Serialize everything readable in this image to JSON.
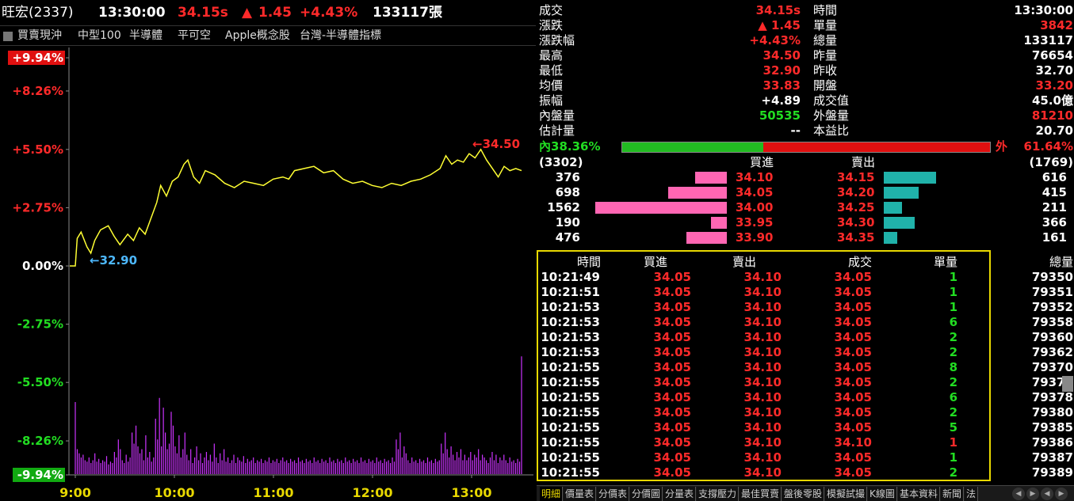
{
  "header": {
    "stock_name": "旺宏(2337)",
    "time": "13:30:00",
    "price": "34.15s",
    "change_arrow": "▲",
    "change": "1.45",
    "change_pct": "+4.43%",
    "volume": "133117張"
  },
  "tags": [
    "買賣現沖",
    "中型100",
    "半導體",
    "平可空",
    "Apple概念股",
    "台灣-半導體指標"
  ],
  "chart_data": {
    "type": "line",
    "title": "",
    "y_labels": [
      "+9.94%",
      "+8.26%",
      "+5.50%",
      "+2.75%",
      "0.00%",
      "-2.75%",
      "-5.50%",
      "-8.26%",
      "-9.94%"
    ],
    "x_labels": [
      "9:00",
      "10:00",
      "11:00",
      "12:00",
      "13:00"
    ],
    "ylim": [
      -9.94,
      9.94
    ],
    "ref_price": 32.7,
    "annotations": {
      "high": "←34.50",
      "low": "←32.90"
    },
    "price_series": [
      {
        "t": 0,
        "p": 0.0
      },
      {
        "t": 1,
        "p": 1.3
      },
      {
        "t": 3,
        "p": 1.6
      },
      {
        "t": 6,
        "p": 0.9
      },
      {
        "t": 8,
        "p": 0.6
      },
      {
        "t": 10,
        "p": 1.2
      },
      {
        "t": 13,
        "p": 1.7
      },
      {
        "t": 17,
        "p": 1.9
      },
      {
        "t": 20,
        "p": 1.4
      },
      {
        "t": 23,
        "p": 1.0
      },
      {
        "t": 27,
        "p": 1.5
      },
      {
        "t": 30,
        "p": 1.2
      },
      {
        "t": 33,
        "p": 1.8
      },
      {
        "t": 36,
        "p": 1.5
      },
      {
        "t": 40,
        "p": 2.5
      },
      {
        "t": 42,
        "p": 3.0
      },
      {
        "t": 44,
        "p": 3.8
      },
      {
        "t": 47,
        "p": 3.3
      },
      {
        "t": 50,
        "p": 4.0
      },
      {
        "t": 53,
        "p": 4.2
      },
      {
        "t": 56,
        "p": 4.8
      },
      {
        "t": 58,
        "p": 5.0
      },
      {
        "t": 61,
        "p": 4.2
      },
      {
        "t": 64,
        "p": 3.9
      },
      {
        "t": 67,
        "p": 4.5
      },
      {
        "t": 72,
        "p": 4.3
      },
      {
        "t": 77,
        "p": 3.9
      },
      {
        "t": 82,
        "p": 3.7
      },
      {
        "t": 87,
        "p": 4.0
      },
      {
        "t": 92,
        "p": 3.9
      },
      {
        "t": 97,
        "p": 3.8
      },
      {
        "t": 102,
        "p": 4.1
      },
      {
        "t": 107,
        "p": 4.2
      },
      {
        "t": 110,
        "p": 4.1
      },
      {
        "t": 113,
        "p": 4.5
      },
      {
        "t": 118,
        "p": 4.6
      },
      {
        "t": 123,
        "p": 4.7
      },
      {
        "t": 128,
        "p": 4.4
      },
      {
        "t": 133,
        "p": 4.5
      },
      {
        "t": 138,
        "p": 4.1
      },
      {
        "t": 143,
        "p": 3.9
      },
      {
        "t": 148,
        "p": 4.0
      },
      {
        "t": 153,
        "p": 3.8
      },
      {
        "t": 158,
        "p": 3.7
      },
      {
        "t": 163,
        "p": 3.9
      },
      {
        "t": 168,
        "p": 3.8
      },
      {
        "t": 173,
        "p": 4.0
      },
      {
        "t": 178,
        "p": 4.1
      },
      {
        "t": 183,
        "p": 4.3
      },
      {
        "t": 188,
        "p": 4.6
      },
      {
        "t": 191,
        "p": 5.2
      },
      {
        "t": 194,
        "p": 4.8
      },
      {
        "t": 197,
        "p": 5.0
      },
      {
        "t": 200,
        "p": 4.9
      },
      {
        "t": 203,
        "p": 5.3
      },
      {
        "t": 206,
        "p": 5.1
      },
      {
        "t": 209,
        "p": 5.5
      },
      {
        "t": 212,
        "p": 5.0
      },
      {
        "t": 215,
        "p": 4.6
      },
      {
        "t": 218,
        "p": 4.2
      },
      {
        "t": 221,
        "p": 4.7
      },
      {
        "t": 224,
        "p": 4.5
      },
      {
        "t": 227,
        "p": 4.6
      },
      {
        "t": 230,
        "p": 4.5
      }
    ],
    "volume_series": [
      52,
      18,
      15,
      12,
      14,
      10,
      9,
      12,
      8,
      10,
      15,
      9,
      11,
      8,
      10,
      9,
      13,
      7,
      9,
      8,
      16,
      12,
      25,
      18,
      10,
      8,
      14,
      9,
      12,
      30,
      22,
      35,
      20,
      15,
      18,
      10,
      28,
      12,
      16,
      9,
      12,
      40,
      25,
      55,
      20,
      48,
      30,
      18,
      22,
      45,
      35,
      20,
      15,
      28,
      12,
      18,
      30,
      14,
      10,
      18,
      8,
      12,
      20,
      10,
      15,
      8,
      12,
      16,
      10,
      14,
      9,
      22,
      12,
      8,
      15,
      10,
      18,
      9,
      12,
      8,
      10,
      14,
      8,
      12,
      10,
      9,
      13,
      8,
      11,
      9,
      10,
      12,
      8,
      10,
      9,
      11,
      8,
      10,
      9,
      12,
      8,
      10,
      9,
      11,
      8,
      10,
      12,
      9,
      10,
      8,
      11,
      9,
      10,
      8,
      12,
      9,
      10,
      8,
      11,
      9,
      10,
      8,
      12,
      9,
      10,
      8,
      11,
      9,
      10,
      8,
      12,
      9,
      10,
      8,
      11,
      9,
      10,
      8,
      12,
      9,
      10,
      8,
      11,
      9,
      10,
      8,
      12,
      9,
      10,
      8,
      11,
      9,
      10,
      8,
      12,
      9,
      10,
      8,
      11,
      9,
      10,
      8,
      12,
      9,
      25,
      18,
      30,
      12,
      20,
      15,
      10,
      8,
      12,
      9,
      10,
      8,
      11,
      9,
      10,
      8,
      12,
      9,
      10,
      8,
      11,
      9,
      10,
      22,
      15,
      30,
      18,
      12,
      20,
      14,
      10,
      16,
      12,
      18,
      10,
      14,
      10,
      12,
      16,
      10,
      14,
      12,
      18,
      10,
      14,
      12,
      10,
      8,
      12,
      16,
      10,
      14,
      8,
      12,
      10,
      14,
      10,
      8,
      12,
      9,
      10,
      8,
      11,
      9,
      85
    ]
  },
  "quote": {
    "left": [
      {
        "label": "成交",
        "value": "34.15s",
        "color": "red"
      },
      {
        "label": "漲跌",
        "value": "▲ 1.45",
        "color": "red"
      },
      {
        "label": "漲跌幅",
        "value": "+4.43%",
        "color": "red"
      },
      {
        "label": "最高",
        "value": "34.50",
        "color": "red"
      },
      {
        "label": "最低",
        "value": "32.90",
        "color": "red"
      },
      {
        "label": "均價",
        "value": "33.83",
        "color": "red"
      },
      {
        "label": "振幅",
        "value": "+4.89",
        "color": "white"
      },
      {
        "label": "內盤量",
        "value": "50535",
        "color": "green"
      },
      {
        "label": "估計量",
        "value": "--",
        "color": "white"
      }
    ],
    "right": [
      {
        "label": "時間",
        "value": "13:30:00",
        "color": "white"
      },
      {
        "label": "單量",
        "value": "3842",
        "color": "red"
      },
      {
        "label": "總量",
        "value": "133117",
        "color": "white"
      },
      {
        "label": "昨量",
        "value": "76654",
        "color": "white"
      },
      {
        "label": "昨收",
        "value": "32.70",
        "color": "white"
      },
      {
        "label": "開盤",
        "value": "33.20",
        "color": "red"
      },
      {
        "label": "成交值",
        "value": "45.0億",
        "color": "white"
      },
      {
        "label": "外盤量",
        "value": "81210",
        "color": "red"
      },
      {
        "label": "本益比",
        "value": "20.70",
        "color": "white"
      }
    ],
    "inner_label": "內",
    "inner_pct": "38.36%",
    "inner_ratio": 0.3836,
    "outer_label": "外",
    "outer_pct": "61.64%"
  },
  "orderbook": {
    "bid_total": "(3302)",
    "ask_total": "(1769)",
    "bid_header": "買進",
    "ask_header": "賣出",
    "bids": [
      {
        "qty": "376",
        "price": "34.10",
        "qty_n": 376
      },
      {
        "qty": "698",
        "price": "34.05",
        "qty_n": 698
      },
      {
        "qty": "1562",
        "price": "34.00",
        "qty_n": 1562
      },
      {
        "qty": "190",
        "price": "33.95",
        "qty_n": 190
      },
      {
        "qty": "476",
        "price": "33.90",
        "qty_n": 476
      }
    ],
    "asks": [
      {
        "price": "34.15",
        "qty": "616",
        "qty_n": 616
      },
      {
        "price": "34.20",
        "qty": "415",
        "qty_n": 415
      },
      {
        "price": "34.25",
        "qty": "211",
        "qty_n": 211
      },
      {
        "price": "34.30",
        "qty": "366",
        "qty_n": 366
      },
      {
        "price": "34.35",
        "qty": "161",
        "qty_n": 161
      }
    ]
  },
  "trades": {
    "headers": [
      "時間",
      "買進",
      "賣出",
      "成交",
      "單量",
      "總量"
    ],
    "rows": [
      [
        "10:21:49",
        "34.05",
        "34.10",
        "34.05",
        "1",
        "79350"
      ],
      [
        "10:21:51",
        "34.05",
        "34.10",
        "34.05",
        "1",
        "79351"
      ],
      [
        "10:21:53",
        "34.05",
        "34.10",
        "34.05",
        "1",
        "79352"
      ],
      [
        "10:21:53",
        "34.05",
        "34.10",
        "34.05",
        "6",
        "79358"
      ],
      [
        "10:21:53",
        "34.05",
        "34.10",
        "34.05",
        "2",
        "79360"
      ],
      [
        "10:21:53",
        "34.05",
        "34.10",
        "34.05",
        "2",
        "79362"
      ],
      [
        "10:21:55",
        "34.05",
        "34.10",
        "34.05",
        "8",
        "79370"
      ],
      [
        "10:21:55",
        "34.05",
        "34.10",
        "34.05",
        "2",
        "79372"
      ],
      [
        "10:21:55",
        "34.05",
        "34.10",
        "34.05",
        "6",
        "79378"
      ],
      [
        "10:21:55",
        "34.05",
        "34.10",
        "34.05",
        "2",
        "79380"
      ],
      [
        "10:21:55",
        "34.05",
        "34.10",
        "34.05",
        "5",
        "79385"
      ],
      [
        "10:21:55",
        "34.05",
        "34.10",
        "34.10",
        "1",
        "79386"
      ],
      [
        "10:21:55",
        "34.05",
        "34.10",
        "34.05",
        "1",
        "79387"
      ],
      [
        "10:21:55",
        "34.05",
        "34.10",
        "34.05",
        "2",
        "79389"
      ]
    ],
    "trade_colors": [
      "green",
      "green",
      "green",
      "green",
      "green",
      "green",
      "green",
      "green",
      "green",
      "green",
      "green",
      "red",
      "green",
      "green"
    ]
  },
  "tabs": [
    "明細",
    "價量表",
    "分價表",
    "分價圖",
    "分量表",
    "支撐壓力",
    "最佳買賣",
    "盤後零股",
    "模擬試撮",
    "K線圖",
    "基本資料",
    "新聞",
    "法"
  ],
  "colors": {
    "price_line": "#ffff33",
    "volume": "#cc33ff",
    "bid_bar": "#ff66b3",
    "ask_bar": "#20b2aa",
    "up": "#ff2a2a",
    "down": "#22dd22",
    "accent": "#e8d800"
  }
}
